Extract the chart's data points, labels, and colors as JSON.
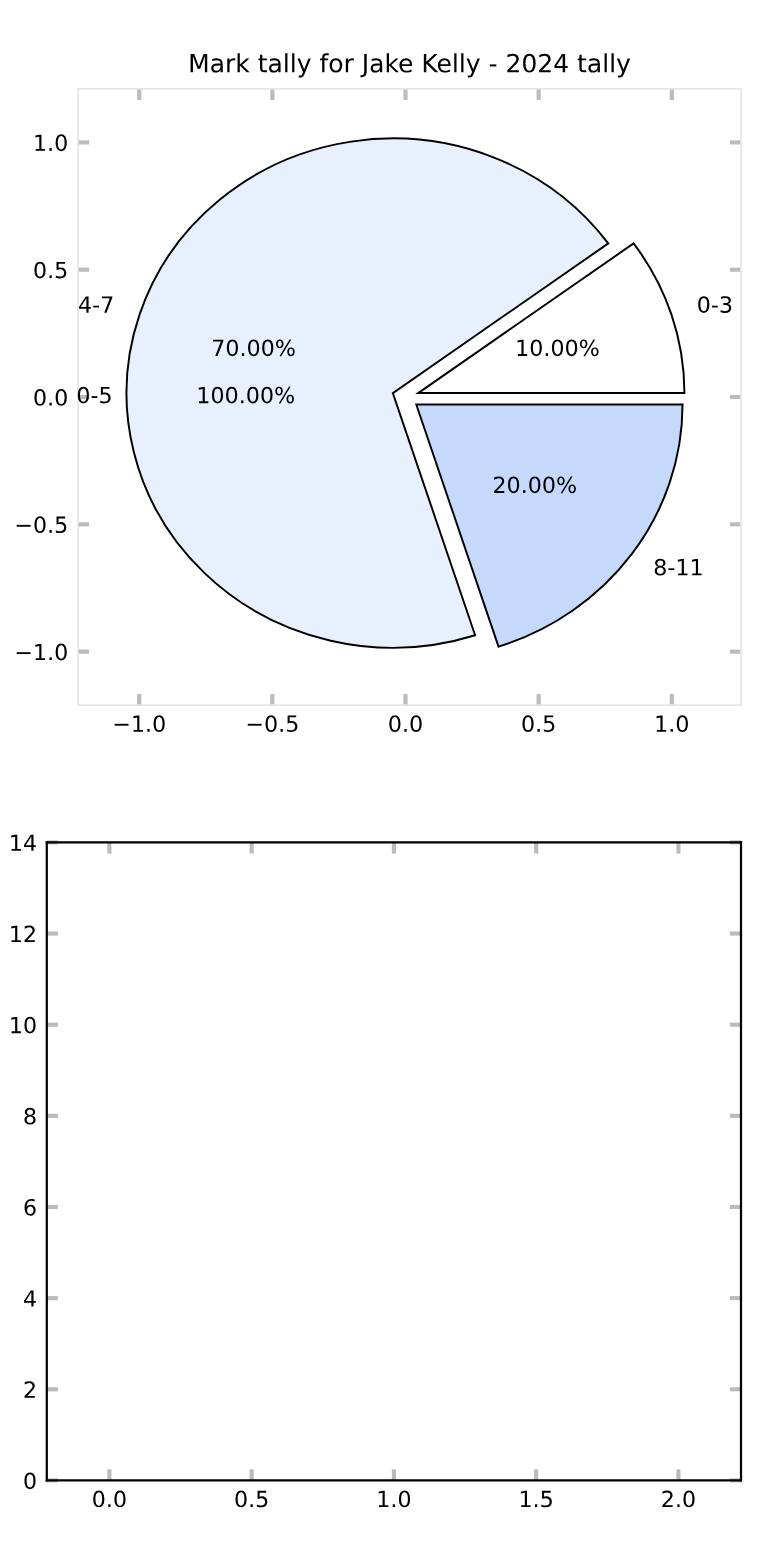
{
  "chart_data": [
    {
      "type": "pie",
      "title": "Mark tally for Jake Kelly - 2024 tally",
      "categories": [
        "0-3",
        "4-7",
        "8-11"
      ],
      "values": [
        10,
        70,
        20
      ],
      "colors": [
        "#ffffff",
        "#e8f0fe",
        "#c5d9fd"
      ],
      "value_labels": [
        "10.00%",
        "70.00%",
        "20.00%"
      ],
      "annotations": [
        "0-5",
        "100.00%"
      ]
    },
    {
      "type": "scatter",
      "xlim": [
        -1.23,
        1.26
      ],
      "ylim": [
        -1.21,
        1.21
      ],
      "xticks": [
        {
          "value": -1.0,
          "label": "−1.0"
        },
        {
          "value": -0.5,
          "label": "−0.5"
        },
        {
          "value": 0,
          "label": "0.0"
        },
        {
          "value": 0.5,
          "label": "0.5"
        },
        {
          "value": 1,
          "label": "1.0"
        }
      ],
      "yticks": [
        {
          "value": -1.0,
          "label": "−1.0"
        },
        {
          "value": -0.5,
          "label": "−0.5"
        },
        {
          "value": 0,
          "label": "0.0"
        },
        {
          "value": 0.5,
          "label": "0.5"
        },
        {
          "value": 1,
          "label": "1.0"
        }
      ]
    },
    {
      "type": "scatter",
      "xlim": [
        -0.22,
        2.22
      ],
      "ylim": [
        0,
        14
      ],
      "xticks": [
        {
          "value": 0,
          "label": "0.0"
        },
        {
          "value": 0.5,
          "label": "0.5"
        },
        {
          "value": 1,
          "label": "1.0"
        },
        {
          "value": 1.5,
          "label": "1.5"
        },
        {
          "value": 2,
          "label": "2.0"
        }
      ],
      "yticks": [
        0,
        2,
        4,
        6,
        8,
        10,
        12,
        14
      ]
    }
  ]
}
